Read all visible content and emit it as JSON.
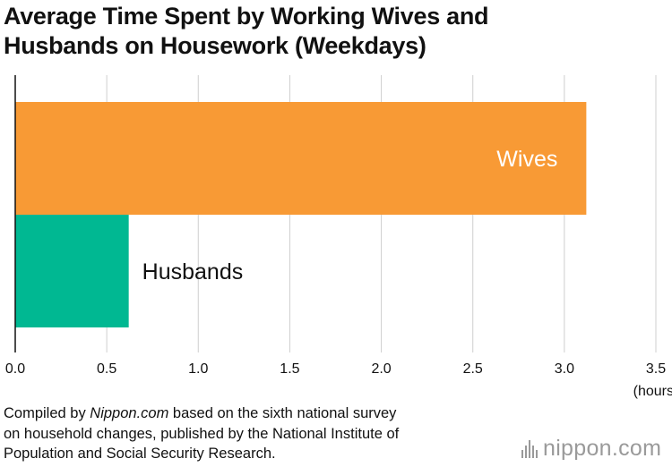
{
  "title": {
    "line1": "Average Time Spent by Working Wives and",
    "line2": "Husbands on Housework (Weekdays)"
  },
  "chart_data": {
    "type": "bar",
    "orientation": "horizontal",
    "categories": [
      "Wives",
      "Husbands"
    ],
    "values": [
      3.12,
      0.62
    ],
    "colors": [
      "#f89a35",
      "#00b892"
    ],
    "label_colors": [
      "#ffffff",
      "#111111"
    ],
    "xlim": [
      0,
      3.5
    ],
    "xticks": [
      "0.0",
      "0.5",
      "1.0",
      "1.5",
      "2.0",
      "2.5",
      "3.0",
      "3.5"
    ],
    "xlabel": "(hours)",
    "grid": true
  },
  "source": {
    "prefix": "Compiled by ",
    "name": "Nippon.com",
    "suffix_line1": " based on the sixth national survey",
    "line2": "on household changes, published by the National Institute of",
    "line3": "Population and Social Security Research."
  },
  "logo": {
    "text_main": "nippon",
    "text_dot": ".",
    "text_end": "com"
  }
}
